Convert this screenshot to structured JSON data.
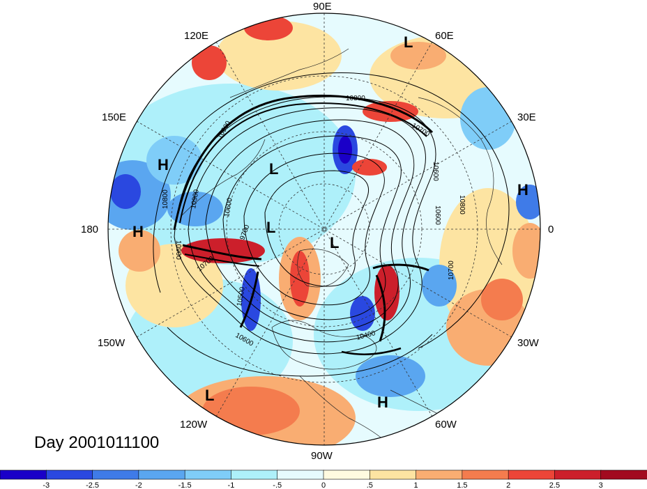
{
  "title": "Day 2001011100",
  "longitude_labels": [
    {
      "id": "lon-90e",
      "text": "90E"
    },
    {
      "id": "lon-60e",
      "text": "60E"
    },
    {
      "id": "lon-120e",
      "text": "120E"
    },
    {
      "id": "lon-150e",
      "text": "150E"
    },
    {
      "id": "lon-30e",
      "text": "30E"
    },
    {
      "id": "lon-180",
      "text": "180"
    },
    {
      "id": "lon-0",
      "text": "0"
    },
    {
      "id": "lon-150w",
      "text": "150W"
    },
    {
      "id": "lon-30w",
      "text": "30W"
    },
    {
      "id": "lon-120w",
      "text": "120W"
    },
    {
      "id": "lon-60w",
      "text": "60W"
    },
    {
      "id": "lon-90w",
      "text": "90W"
    }
  ],
  "pressure_systems": [
    {
      "id": "l-60e",
      "text": "L"
    },
    {
      "id": "h-150e",
      "text": "H"
    },
    {
      "id": "l-pole-asia",
      "text": "L"
    },
    {
      "id": "h-180",
      "text": "H"
    },
    {
      "id": "l-pole-center",
      "text": "L"
    },
    {
      "id": "l-pole-greenland",
      "text": "L"
    },
    {
      "id": "h-0",
      "text": "H"
    },
    {
      "id": "l-120w",
      "text": "L"
    },
    {
      "id": "h-60w",
      "text": "H"
    }
  ],
  "contour_labels": [
    {
      "id": "c-10800-a",
      "text": "10800"
    },
    {
      "id": "c-10700-a",
      "text": "10700"
    },
    {
      "id": "c-10900-a",
      "text": "10900"
    },
    {
      "id": "c-10600-a",
      "text": "10600"
    },
    {
      "id": "c-10800-b",
      "text": "10800"
    },
    {
      "id": "c-10600-b",
      "text": "10600"
    },
    {
      "id": "c-10800-c",
      "text": "10800"
    },
    {
      "id": "c-9700",
      "text": "9700"
    },
    {
      "id": "c-10900-b",
      "text": "10900"
    },
    {
      "id": "c-10600-c",
      "text": "10600"
    },
    {
      "id": "c-10900-c",
      "text": "10900"
    },
    {
      "id": "c-10700-b",
      "text": "10700"
    },
    {
      "id": "c-10500",
      "text": "10500"
    },
    {
      "id": "c-10600-d",
      "text": "10600"
    },
    {
      "id": "c-10400",
      "text": "10400"
    },
    {
      "id": "c-10700-c",
      "text": "10700"
    }
  ],
  "colorbar": {
    "colors": [
      "#1a00c8",
      "#2a48e0",
      "#3f7be8",
      "#5aa6f0",
      "#7fcdf8",
      "#aef0fa",
      "#e6fbfe",
      "#fffbe0",
      "#fde4a2",
      "#f9ad72",
      "#f47c4e",
      "#ec4538",
      "#cc1f2b",
      "#a20a1f"
    ],
    "labels": [
      "-3",
      "-2.5",
      "-2",
      "-1.5",
      "-1",
      "-.5",
      "0",
      ".5",
      "1",
      "1.5",
      "2",
      "2.5",
      "3"
    ]
  }
}
